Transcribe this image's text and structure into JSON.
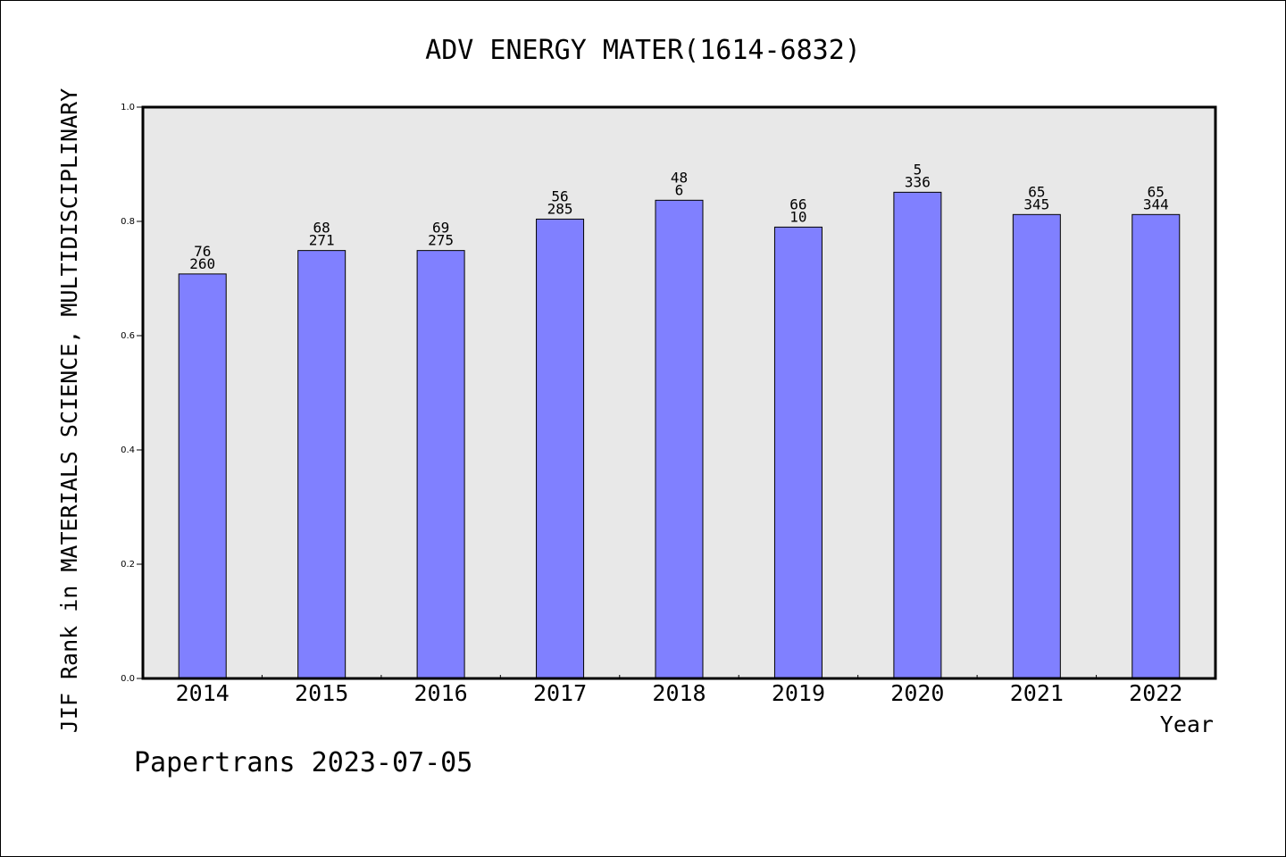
{
  "chart_data": {
    "type": "bar",
    "title": "ADV ENERGY MATER(1614-6832)",
    "ylabel": "JIF Rank in MATERIALS SCIENCE, MULTIDISCIPLINARY",
    "xlabel": "Year",
    "footer": "Papertrans 2023-07-05",
    "ylim": [
      0,
      1.0
    ],
    "yticks": [
      "0.0",
      "0.2",
      "0.4",
      "0.6",
      "0.8",
      "1.0"
    ],
    "ytick_values": [
      0,
      0.2,
      0.4,
      0.6,
      0.8,
      1.0
    ],
    "grid": false,
    "colors": {
      "bar": "#8080ff",
      "plot_bg": "#e8e8e8"
    },
    "categories": [
      "2014",
      "2015",
      "2016",
      "2017",
      "2018",
      "2019",
      "2020",
      "2021",
      "2022"
    ],
    "values": [
      0.708,
      0.749,
      0.749,
      0.804,
      0.837,
      0.79,
      0.851,
      0.812,
      0.812
    ],
    "labels_top": [
      "76",
      "68",
      "69",
      "56",
      "48",
      "66",
      "5",
      "65",
      "65"
    ],
    "labels_bottom": [
      "260",
      "271",
      "275",
      "285",
      "6",
      "10",
      "336",
      "345",
      "344"
    ]
  }
}
